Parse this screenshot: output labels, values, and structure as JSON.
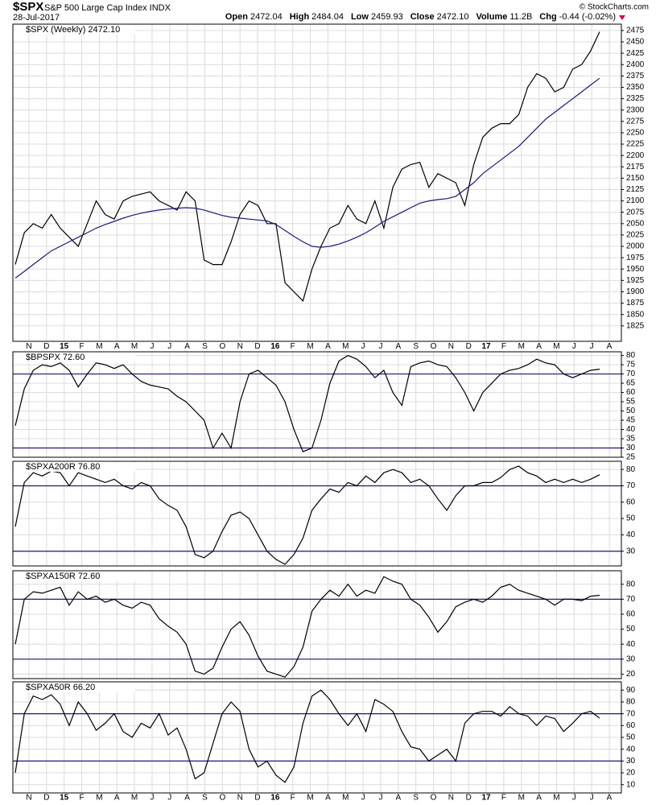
{
  "header": {
    "symbol": "$SPX",
    "name": "S&P 500 Large Cap Index INDX",
    "date": "28-Jul-2017",
    "quote": [
      {
        "label": "Open",
        "value": "2472.04"
      },
      {
        "label": "High",
        "value": "2484.04"
      },
      {
        "label": "Low",
        "value": "2459.93"
      },
      {
        "label": "Close",
        "value": "2472.10"
      },
      {
        "label": "Volume",
        "value": "11.2B"
      },
      {
        "label": "Chg",
        "value": "-0.44 (-0.02%)"
      }
    ],
    "credit": "© StockCharts.com"
  },
  "x_axis": {
    "labels": [
      "N",
      "D",
      "15",
      "F",
      "M",
      "A",
      "M",
      "J",
      "J",
      "A",
      "S",
      "O",
      "N",
      "D",
      "16",
      "F",
      "M",
      "A",
      "M",
      "J",
      "J",
      "A",
      "S",
      "O",
      "N",
      "D",
      "17",
      "F",
      "M",
      "A",
      "M",
      "J",
      "J",
      "A"
    ]
  },
  "chart_data": [
    {
      "type": "line",
      "title": "$SPX (Weekly) 2472.10",
      "grid": true,
      "ylim": [
        1791,
        2489
      ],
      "yticks": [
        1825,
        1850,
        1875,
        1900,
        1925,
        1950,
        1975,
        2000,
        2025,
        2050,
        2075,
        2100,
        2125,
        2150,
        2175,
        2200,
        2225,
        2250,
        2275,
        2300,
        2325,
        2350,
        2375,
        2400,
        2425,
        2450,
        2475
      ],
      "series": [
        {
          "color": "#000000",
          "values": [
            1960,
            2030,
            2050,
            2040,
            2070,
            2040,
            2020,
            2000,
            2050,
            2100,
            2070,
            2060,
            2100,
            2110,
            2115,
            2120,
            2100,
            2090,
            2080,
            2120,
            2100,
            1970,
            1960,
            1960,
            2010,
            2070,
            2100,
            2090,
            2050,
            2050,
            1920,
            1900,
            1880,
            1950,
            2000,
            2040,
            2050,
            2090,
            2060,
            2050,
            2100,
            2040,
            2130,
            2170,
            2180,
            2185,
            2130,
            2160,
            2150,
            2140,
            2090,
            2180,
            2240,
            2260,
            2270,
            2270,
            2290,
            2350,
            2380,
            2370,
            2340,
            2350,
            2390,
            2400,
            2430,
            2472.1
          ]
        },
        {
          "color": "#1a1a80",
          "values": [
            1930,
            1945,
            1960,
            1975,
            1990,
            2000,
            2010,
            2020,
            2030,
            2040,
            2048,
            2055,
            2062,
            2068,
            2073,
            2077,
            2080,
            2082,
            2084,
            2085,
            2084,
            2080,
            2074,
            2068,
            2064,
            2062,
            2060,
            2058,
            2056,
            2048,
            2035,
            2022,
            2010,
            2000,
            1998,
            2000,
            2005,
            2012,
            2020,
            2030,
            2042,
            2055,
            2065,
            2075,
            2085,
            2095,
            2100,
            2103,
            2105,
            2110,
            2125,
            2140,
            2160,
            2175,
            2190,
            2205,
            2220,
            2240,
            2260,
            2280,
            2295,
            2310,
            2325,
            2340,
            2355,
            2370
          ]
        }
      ]
    },
    {
      "type": "line",
      "title": "$BPSPX 72.60",
      "grid": true,
      "reference_lines": [
        70,
        30
      ],
      "ylim": [
        25,
        82
      ],
      "yticks": [
        25,
        30,
        35,
        40,
        45,
        50,
        55,
        60,
        65,
        70,
        75,
        80
      ],
      "series": [
        {
          "color": "#000000",
          "values": [
            42,
            62,
            72,
            75,
            74,
            76,
            72,
            63,
            70,
            76,
            75,
            73,
            75,
            70,
            66,
            64,
            63,
            62,
            58,
            55,
            50,
            45,
            30,
            38,
            30,
            55,
            70,
            72,
            68,
            64,
            55,
            40,
            28,
            30,
            45,
            65,
            77,
            80,
            78,
            74,
            68,
            72,
            60,
            53,
            74,
            76,
            77,
            75,
            74,
            68,
            60,
            50,
            60,
            65,
            70,
            72,
            73,
            75,
            78,
            76,
            75,
            70,
            68,
            70,
            72,
            72.6
          ]
        }
      ]
    },
    {
      "type": "line",
      "title": "$SPXA200R 76.80",
      "grid": true,
      "reference_lines": [
        70,
        30
      ],
      "ylim": [
        21,
        85
      ],
      "yticks": [
        30,
        40,
        50,
        60,
        70,
        80
      ],
      "series": [
        {
          "color": "#000000",
          "values": [
            45,
            72,
            78,
            76,
            79,
            78,
            70,
            78,
            76,
            74,
            72,
            74,
            70,
            68,
            72,
            70,
            62,
            58,
            55,
            45,
            28,
            26,
            30,
            42,
            52,
            54,
            50,
            40,
            30,
            25,
            22,
            28,
            38,
            55,
            62,
            68,
            66,
            72,
            70,
            76,
            72,
            78,
            80,
            78,
            72,
            74,
            70,
            62,
            55,
            64,
            70,
            70,
            72,
            72,
            75,
            80,
            82,
            78,
            76,
            72,
            74,
            72,
            74,
            72,
            74,
            76.8
          ]
        }
      ]
    },
    {
      "type": "line",
      "title": "$SPXA150R 72.60",
      "grid": true,
      "reference_lines": [
        70,
        30
      ],
      "ylim": [
        17,
        89
      ],
      "yticks": [
        20,
        30,
        40,
        50,
        60,
        70,
        80
      ],
      "series": [
        {
          "color": "#000000",
          "values": [
            40,
            70,
            75,
            74,
            76,
            78,
            66,
            75,
            70,
            72,
            68,
            70,
            66,
            64,
            68,
            66,
            57,
            52,
            48,
            40,
            22,
            20,
            24,
            38,
            50,
            55,
            46,
            32,
            22,
            20,
            18,
            25,
            38,
            62,
            70,
            76,
            72,
            80,
            72,
            76,
            74,
            85,
            82,
            80,
            70,
            66,
            58,
            48,
            55,
            65,
            68,
            70,
            68,
            72,
            78,
            80,
            76,
            74,
            72,
            70,
            66,
            70,
            70,
            69,
            72,
            72.6
          ]
        }
      ]
    },
    {
      "type": "line",
      "title": "$SPXA50R 66.20",
      "grid": true,
      "reference_lines": [
        70,
        30
      ],
      "ylim": [
        3,
        97
      ],
      "yticks": [
        10,
        20,
        30,
        40,
        50,
        60,
        70,
        80,
        90
      ],
      "series": [
        {
          "color": "#000000",
          "values": [
            20,
            70,
            85,
            82,
            86,
            78,
            60,
            80,
            70,
            56,
            62,
            70,
            55,
            50,
            62,
            58,
            70,
            52,
            58,
            40,
            15,
            20,
            45,
            70,
            80,
            72,
            40,
            25,
            30,
            18,
            12,
            25,
            62,
            85,
            90,
            82,
            70,
            60,
            70,
            55,
            82,
            78,
            72,
            55,
            42,
            40,
            30,
            35,
            40,
            30,
            62,
            70,
            72,
            72,
            68,
            76,
            70,
            68,
            60,
            68,
            66,
            55,
            62,
            70,
            72,
            66.2
          ]
        }
      ]
    }
  ]
}
